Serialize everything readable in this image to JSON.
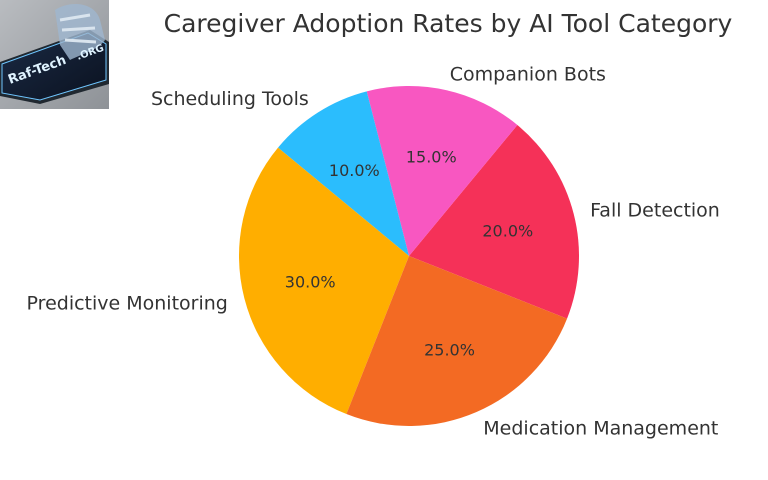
{
  "chart_data": {
    "type": "pie",
    "title": "Caregiver Adoption Rates by AI Tool Category",
    "categories": [
      "Fall Detection",
      "Companion Bots",
      "Scheduling Tools",
      "Predictive Monitoring",
      "Medication Management"
    ],
    "values": [
      20,
      15,
      10,
      30,
      25
    ],
    "value_labels": [
      "20.0%",
      "15.0%",
      "10.0%",
      "30.0%",
      "25.0%"
    ],
    "colors": [
      "#F53158",
      "#F857C1",
      "#2BBDFD",
      "#FFAE00",
      "#F36A23"
    ],
    "start_angle_deg": -21.6,
    "counterclockwise": true,
    "legend": "none (labels placed outside slices)"
  },
  "logo": {
    "text": "Raf-Tech .ORG"
  }
}
